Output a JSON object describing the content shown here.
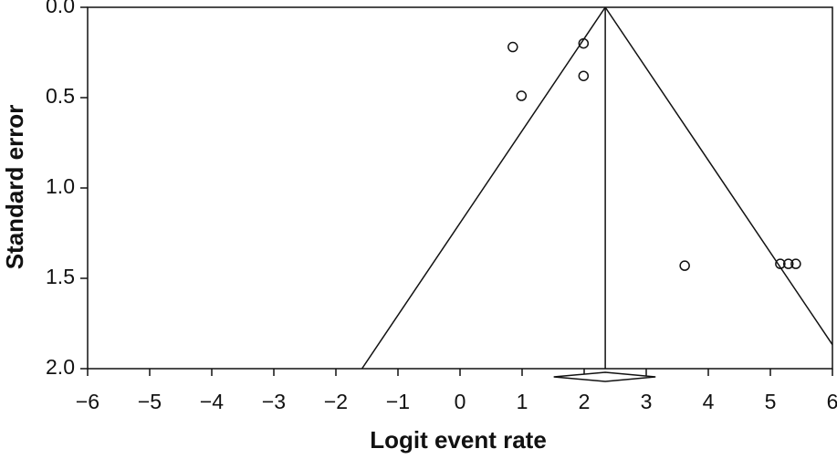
{
  "chart_data": {
    "type": "scatter",
    "x_label": "Logit event rate",
    "y_label": "Standard error",
    "x": [
      0.85,
      1.99,
      1.99,
      0.99,
      3.62,
      5.16,
      5.29,
      5.41
    ],
    "y": [
      0.22,
      0.2,
      0.38,
      0.49,
      1.43,
      1.42,
      1.42,
      1.42
    ],
    "pooled_estimate": 2.34,
    "pooled_ci": [
      1.51,
      3.15
    ],
    "funnel_z": 1.96,
    "xlim": [
      -6,
      6
    ],
    "ylim": [
      0,
      2
    ],
    "y_inverted": true,
    "xticks": [
      {
        "value": -6,
        "label": "−6"
      },
      {
        "value": -5,
        "label": "−5"
      },
      {
        "value": -4,
        "label": "−4"
      },
      {
        "value": -3,
        "label": "−3"
      },
      {
        "value": -2,
        "label": "−2"
      },
      {
        "value": -1,
        "label": "−1"
      },
      0,
      1,
      2,
      3,
      4,
      5,
      6
    ],
    "yticks": [
      {
        "value": 0,
        "label": "0.0"
      },
      0.5,
      {
        "value": 1,
        "label": "1.0"
      },
      1.5,
      {
        "value": 2,
        "label": "2.0"
      }
    ],
    "color": "#111111"
  }
}
